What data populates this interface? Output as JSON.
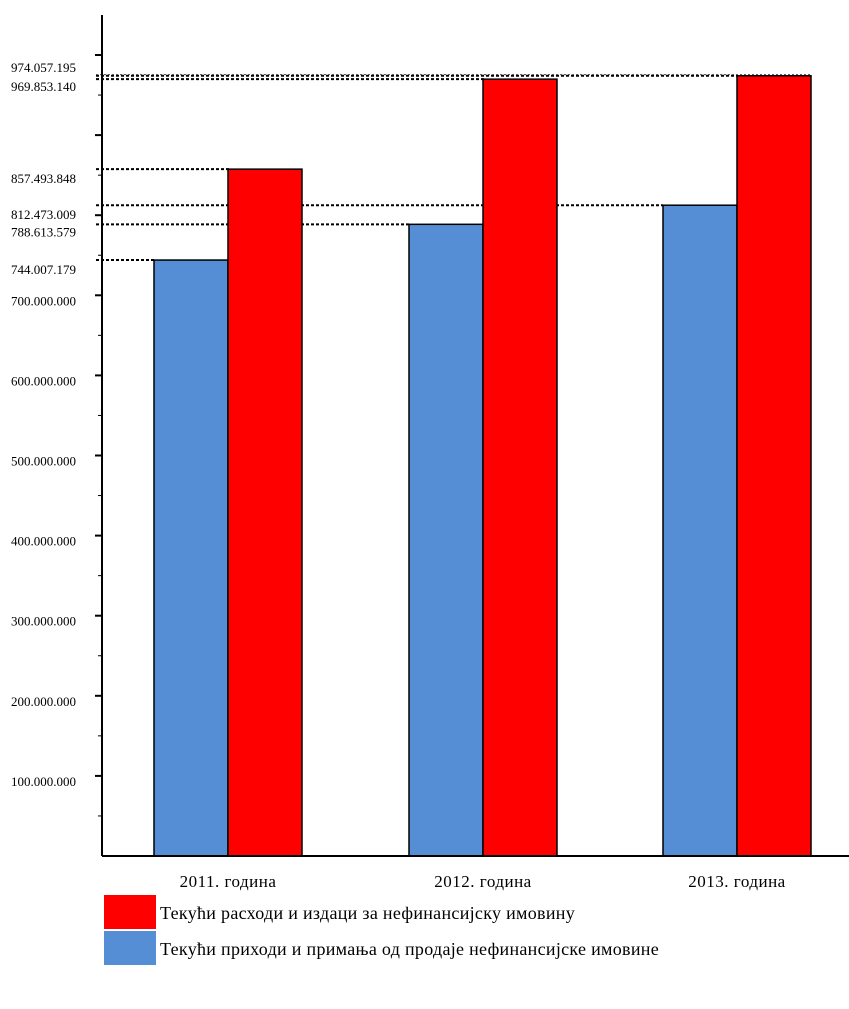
{
  "chart_data": {
    "type": "bar",
    "categories": [
      "2011. година",
      "2012. година",
      "2013. година"
    ],
    "series": [
      {
        "name": "Текући приходи и примања од продаје нефинансијске имовине",
        "color": "#558ed5",
        "values": [
          744007179,
          788613579,
          812473009
        ]
      },
      {
        "name": "Текући расходи и издаци за нефинансијску имовину",
        "color": "#ff0000",
        "values": [
          857493848,
          969853140,
          974057195
        ]
      }
    ],
    "ytick_labels": [
      "100.000.000",
      "200.000.000",
      "300.000.000",
      "400.000.000",
      "500.000.000",
      "600.000.000",
      "700.000.000"
    ],
    "ytick_values": [
      100000000,
      200000000,
      300000000,
      400000000,
      500000000,
      600000000,
      700000000
    ],
    "value_labels": [
      {
        "text": "974.057.195",
        "value": 974057195
      },
      {
        "text": "969.853.140",
        "value": 969853140
      },
      {
        "text": "857.493.848",
        "value": 857493848
      },
      {
        "text": "812.473.009",
        "value": 812473009
      },
      {
        "text": "788.613.579",
        "value": 788613579
      },
      {
        "text": "744.007.179",
        "value": 744007179
      }
    ],
    "ylim": [
      0,
      1000000000
    ],
    "legend_position": "bottom",
    "grid": false
  },
  "legend": {
    "expenses_label": "Текући расходи и издаци за нефинансијску имовину",
    "revenues_label": "Текући приходи и примања од продаје нефинансијске имовине"
  }
}
